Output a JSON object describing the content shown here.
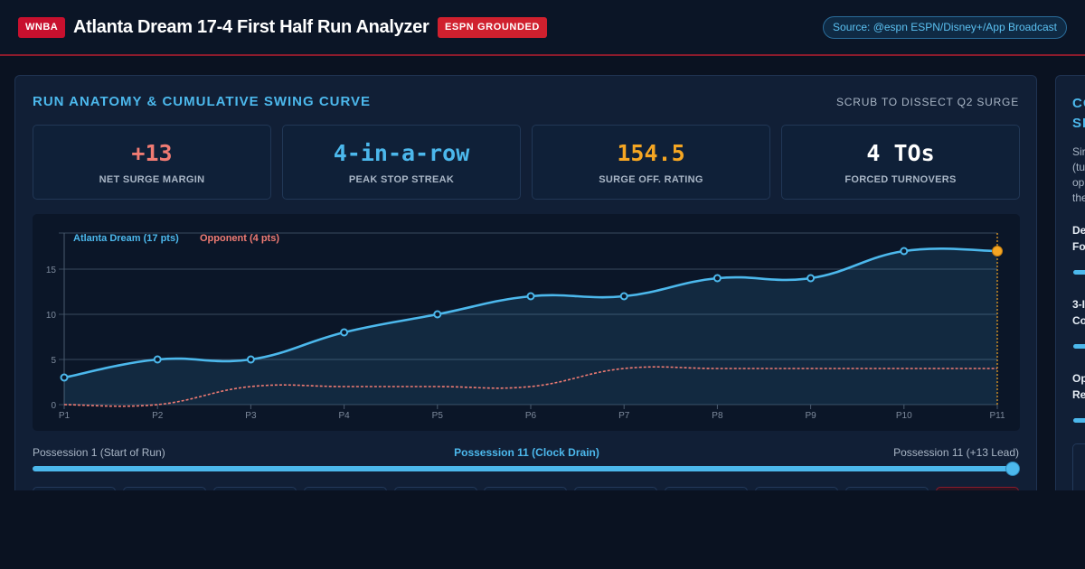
{
  "header": {
    "league_badge": "WNBA",
    "title": "Atlanta Dream 17-4 First Half Run Analyzer",
    "grounded_badge": "ESPN GROUNDED",
    "source": "Source: @espn ESPN/Disney+/App Broadcast"
  },
  "main": {
    "title": "RUN ANATOMY & CUMULATIVE SWING CURVE",
    "hint": "SCRUB TO DISSECT Q2 SURGE",
    "stats": [
      {
        "value": "+13",
        "label": "NET SURGE MARGIN",
        "color": "#f07b73"
      },
      {
        "value": "4-in-a-row",
        "label": "PEAK STOP STREAK",
        "color": "#4cb8ec"
      },
      {
        "value": "154.5",
        "label": "SURGE OFF. RATING",
        "color": "#f5a623"
      },
      {
        "value": "4 TOs",
        "label": "FORCED TURNOVERS",
        "color": "#ffffff"
      }
    ],
    "scrubber": {
      "start_label": "Possession 1 (Start of Run)",
      "current_label": "Possession 11 (Clock Drain)",
      "end_label": "Possession 11 (+13 Lead)",
      "position": 11,
      "max": 11
    }
  },
  "chart_data": {
    "type": "line",
    "categories": [
      "P1",
      "P2",
      "P3",
      "P4",
      "P5",
      "P6",
      "P7",
      "P8",
      "P9",
      "P10",
      "P11"
    ],
    "series": [
      {
        "name": "Atlanta Dream (17 pts)",
        "values": [
          3,
          5,
          5,
          8,
          10,
          12,
          12,
          14,
          14,
          17,
          17
        ],
        "color": "#4cb8ec"
      },
      {
        "name": "Opponent (4 pts)",
        "values": [
          0,
          0,
          2,
          2,
          2,
          2,
          4,
          4,
          4,
          4,
          4
        ],
        "color": "#f07b73"
      }
    ],
    "yticks": [
      0,
      5,
      10,
      15
    ],
    "ylim": [
      0,
      19
    ],
    "grid": true,
    "legend": "top-left",
    "highlight_index": 10,
    "highlight_color": "#f5a623"
  },
  "side": {
    "title_line1": "CO",
    "title_line2": "SI",
    "text_lines": [
      "Sir",
      "(tu",
      "op",
      "the"
    ],
    "controls": [
      {
        "line1": "De",
        "line2": "Fo"
      },
      {
        "line1": "3-I",
        "line2": "Co"
      },
      {
        "line1": "Op",
        "line2": "Re"
      }
    ]
  }
}
